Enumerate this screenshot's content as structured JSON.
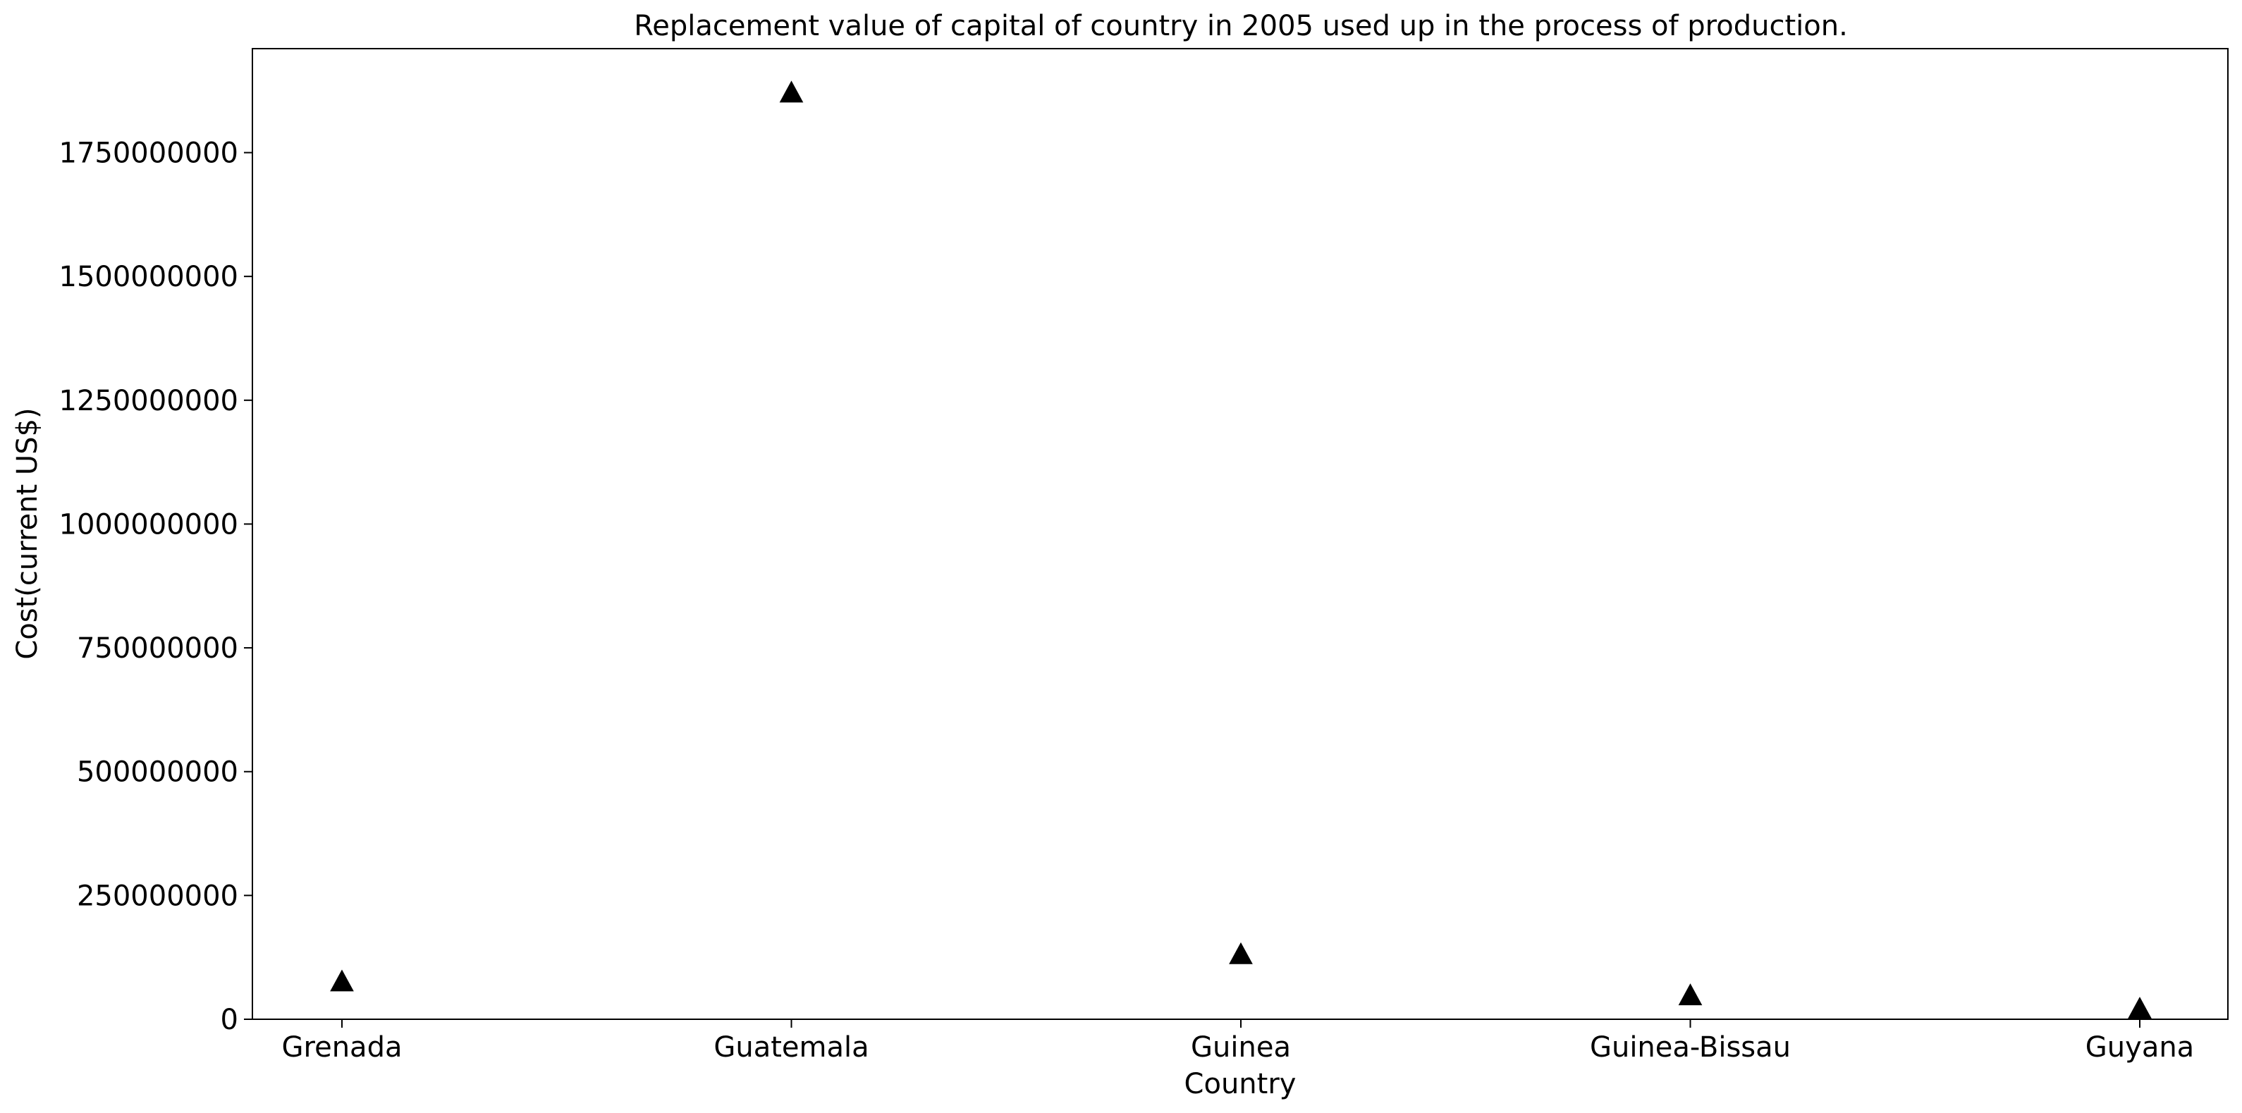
{
  "chart_data": {
    "type": "scatter",
    "title": "Replacement value of capital of country in 2005 used up in the process of production.",
    "xlabel": "Country",
    "ylabel": "Cost(current US$)",
    "categories": [
      "Grenada",
      "Guatemala",
      "Guinea",
      "Guinea-Bissau",
      "Guyana"
    ],
    "series": [
      {
        "values": [
          75000000,
          1870000000,
          130000000,
          47000000,
          20000000
        ],
        "marker": "triangle-up",
        "color": "#000000"
      }
    ],
    "ylim": [
      0,
      1960000000
    ],
    "yticks": [
      0,
      250000000,
      500000000,
      750000000,
      1000000000,
      1250000000,
      1500000000,
      1750000000
    ],
    "ytick_labels": [
      "0",
      "250000000",
      "500000000",
      "750000000",
      "1000000000",
      "1250000000",
      "1500000000",
      "1750000000"
    ],
    "grid": false,
    "legend": "none"
  }
}
